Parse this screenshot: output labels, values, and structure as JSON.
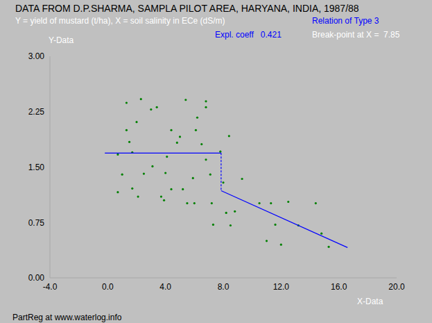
{
  "chart_data": {
    "type": "scatter",
    "title": "DATA FROM D.P.SHARMA, SAMPLA PILOT AREA, HARYANA, INDIA, 1987/88",
    "subtitle": "Y = yield of mustard (t/ha), X = soil salinity in ECe (dS/m)",
    "annotations": [
      {
        "text": "Relation of Type 3",
        "color": "#0000ff"
      },
      {
        "text": "Expl. coeff   0.421",
        "color": "#0000ff"
      },
      {
        "text": "Break-point at X =  7.85",
        "color": "#ffffff"
      },
      {
        "text": "PartReg at www.waterlog.info",
        "color": "#000000"
      }
    ],
    "x_label": "X-Data",
    "y_label": "Y-Data",
    "xlim": [
      -4,
      20
    ],
    "xticks": [
      {
        "value": -4,
        "label": "-4.0"
      },
      {
        "value": 0,
        "label": "0.0"
      },
      {
        "value": 4,
        "label": "4.0"
      },
      {
        "value": 8,
        "label": "8.0"
      },
      {
        "value": 12,
        "label": "12.0"
      },
      {
        "value": 16,
        "label": "16.0"
      },
      {
        "value": 20,
        "label": "20.0"
      }
    ],
    "ylim": [
      0,
      3
    ],
    "yticks": [
      {
        "value": 0,
        "label": "0.00"
      },
      {
        "value": 0.75,
        "label": "0.75"
      },
      {
        "value": 1.5,
        "label": "1.50"
      },
      {
        "value": 2.25,
        "label": "2.25"
      },
      {
        "value": 3,
        "label": "3.00"
      }
    ],
    "grid": false,
    "series": [
      {
        "type": "scatter",
        "color": "#008000",
        "marker": "circle",
        "x": [
          0.7,
          0.7,
          1.0,
          1.3,
          1.3,
          1.5,
          1.7,
          1.7,
          2.0,
          2.1,
          2.3,
          2.5,
          3.0,
          3.1,
          3.4,
          3.7,
          3.9,
          4.0,
          4.1,
          4.4,
          4.4,
          4.8,
          5.0,
          5.2,
          5.4,
          5.5,
          5.9,
          6.0,
          6.1,
          6.2,
          6.5,
          6.8,
          6.8,
          6.8,
          7.1,
          7.2,
          7.3,
          7.8,
          8.0,
          8.2,
          8.4,
          8.5,
          8.8,
          9.3,
          10.5,
          11.0,
          11.3,
          11.6,
          12.0,
          12.5,
          13.2,
          14.4,
          14.8,
          15.3
        ],
        "values": [
          1.67,
          1.16,
          1.4,
          2.37,
          2.0,
          1.84,
          1.21,
          1.7,
          2.11,
          1.1,
          2.42,
          1.41,
          2.28,
          1.51,
          2.31,
          1.1,
          1.05,
          1.42,
          1.64,
          2.0,
          1.2,
          1.83,
          1.91,
          1.2,
          2.41,
          1.01,
          1.35,
          1.01,
          2.0,
          2.17,
          1.81,
          1.6,
          2.31,
          2.39,
          1.4,
          1.01,
          0.72,
          1.71,
          1.29,
          0.88,
          1.92,
          0.71,
          0.9,
          1.34,
          1.01,
          0.5,
          1.01,
          0.72,
          0.45,
          1.03,
          0.71,
          1.01,
          0.6,
          0.42
        ]
      },
      {
        "type": "line",
        "color": "#0000ff",
        "line_style": "solid",
        "x": [
          -0.2,
          7.85
        ],
        "values": [
          1.69,
          1.69
        ]
      },
      {
        "type": "line",
        "color": "#0000ff",
        "line_style": "dashed",
        "x": [
          7.85,
          7.85
        ],
        "values": [
          1.69,
          1.18
        ]
      },
      {
        "type": "line",
        "color": "#0000ff",
        "line_style": "solid",
        "x": [
          7.85,
          16.6
        ],
        "values": [
          1.18,
          0.41
        ]
      }
    ]
  }
}
